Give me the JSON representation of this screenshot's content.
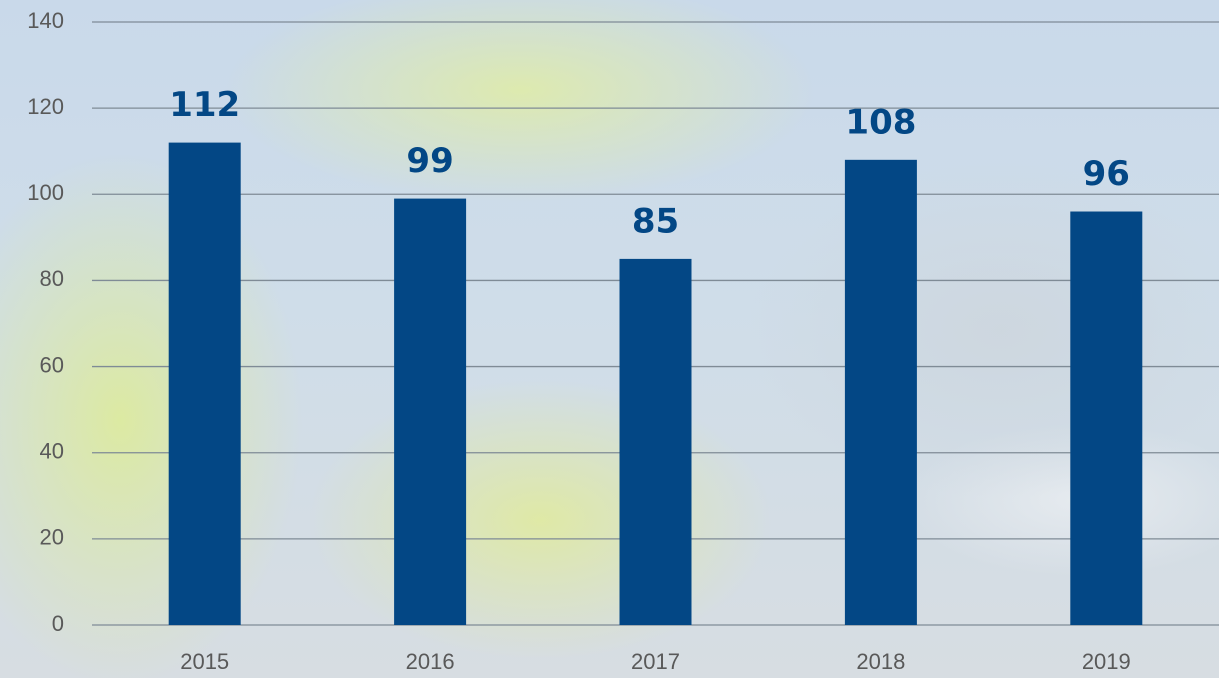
{
  "chart_data": {
    "type": "bar",
    "categories": [
      "2015",
      "2016",
      "2017",
      "2018",
      "2019"
    ],
    "values": [
      112,
      99,
      85,
      108,
      96
    ],
    "color": "#034785",
    "ylim": [
      0,
      140
    ],
    "yticks": [
      0,
      20,
      40,
      60,
      80,
      100,
      120,
      140
    ],
    "grid": true
  }
}
